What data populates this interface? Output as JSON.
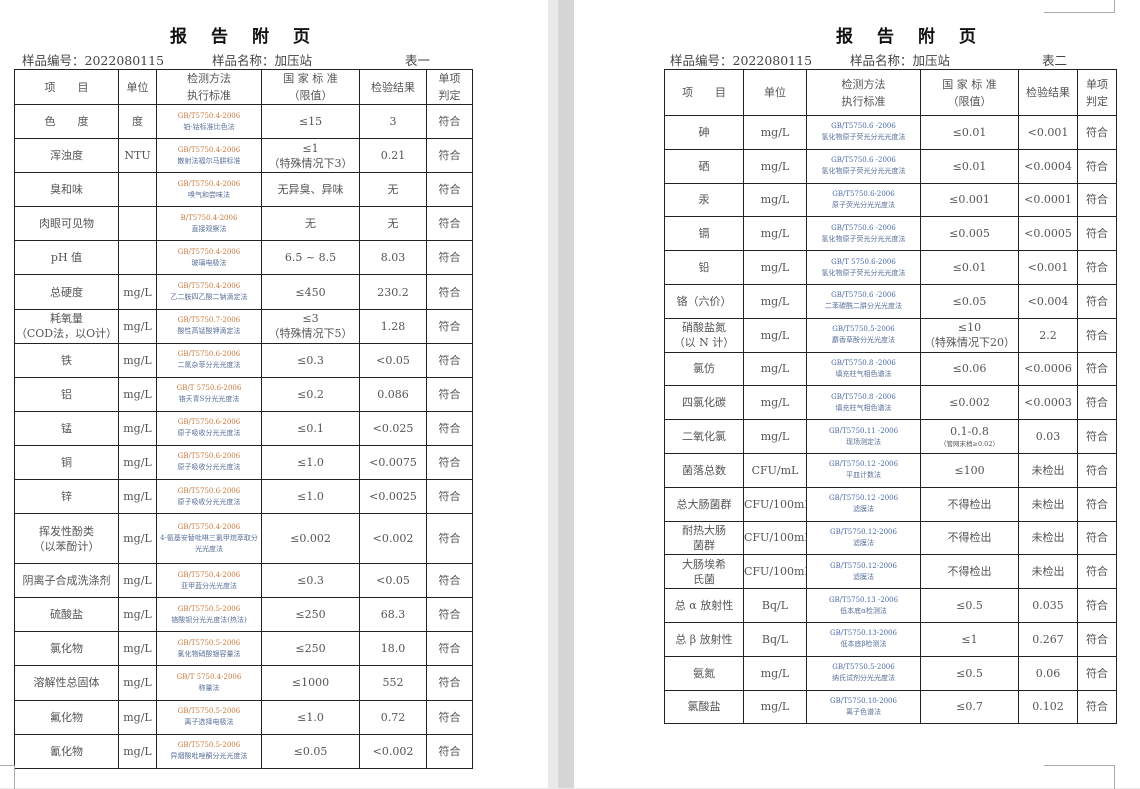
{
  "pages": [
    {
      "title": "报告附页",
      "sample_no_label": "样品编号：",
      "sample_no": "2022080115",
      "sample_name_label": "样品名称：",
      "sample_name": "加压站",
      "table_label": "表一",
      "headers": [
        "项　　目",
        "单位",
        "检测方法\n执行标准",
        "国 家 标 准\n（限值）",
        "检验结果",
        "单项\n判定"
      ],
      "rows": [
        {
          "item": "色　　度",
          "unit": "度",
          "std": "GB/T5750.4-2006",
          "method": "铂-钴标准比色法",
          "limit": "≤15",
          "result": "3",
          "verdict": "符合"
        },
        {
          "item": "浑浊度",
          "unit": "NTU",
          "std": "GB/T5750.4-2006",
          "method": "散射法福尔马肼标准",
          "limit": "≤1\n（特殊情况下3）",
          "result": "0.21",
          "verdict": "符合"
        },
        {
          "item": "臭和味",
          "unit": "",
          "std": "GB/T5750.4-2006",
          "method": "嗅气和尝味法",
          "limit": "无异臭、异味",
          "result": "无",
          "verdict": "符合"
        },
        {
          "item": "肉眼可见物",
          "unit": "",
          "std": "B/T5750.4-2006",
          "method": "直接观察法",
          "limit": "无",
          "result": "无",
          "verdict": "符合"
        },
        {
          "item": "pH 值",
          "unit": "",
          "std": "GB/T5750.4-2006",
          "method": "玻璃电极法",
          "limit": "6.5 ~ 8.5",
          "result": "8.03",
          "verdict": "符合"
        },
        {
          "item": "总硬度",
          "unit": "mg/L",
          "std": "GB/T5750.4-2006",
          "method": "乙二胺四乙酸二钠滴定法",
          "limit": "≤450",
          "result": "230.2",
          "verdict": "符合"
        },
        {
          "item": "耗氧量\n（COD法，以O计）",
          "unit": "mg/L",
          "std": "GB/T5750.7-2006",
          "method": "酸性高锰酸钾滴定法",
          "limit": "≤3\n（特殊情况下5）",
          "result": "1.28",
          "verdict": "符合"
        },
        {
          "item": "铁",
          "unit": "mg/L",
          "std": "GB/T5750.6-2006",
          "method": "二氮杂菲分光光度法",
          "limit": "≤0.3",
          "result": "<0.05",
          "verdict": "符合"
        },
        {
          "item": "铝",
          "unit": "mg/L",
          "std": "GB/T 5750.6-2006",
          "method": "铬天青S分光光度法",
          "limit": "≤0.2",
          "result": "0.086",
          "verdict": "符合"
        },
        {
          "item": "锰",
          "unit": "mg/L",
          "std": "GB/T5750.6-2006",
          "method": "原子吸收分光光度法",
          "limit": "≤0.1",
          "result": "<0.025",
          "verdict": "符合"
        },
        {
          "item": "铜",
          "unit": "mg/L",
          "std": "GB/T5750.6-2006",
          "method": "原子吸收分光光度法",
          "limit": "≤1.0",
          "result": "<0.0075",
          "verdict": "符合"
        },
        {
          "item": "锌",
          "unit": "mg/L",
          "std": "GB/T5750.6-2006",
          "method": "原子吸收分光光度法",
          "limit": "≤1.0",
          "result": "<0.0025",
          "verdict": "符合"
        },
        {
          "item": "挥发性酚类\n（以苯酚计）",
          "unit": "mg/L",
          "std": "GB/T5750.4-2006",
          "method": "4-氨基安替吡啉三氯甲烷萃取分光光度法",
          "limit": "≤0.002",
          "result": "<0.002",
          "verdict": "符合",
          "tall": true
        },
        {
          "item": "阴离子合成洗涤剂",
          "unit": "mg/L",
          "std": "GB/T5750.4-2006",
          "method": "亚甲蓝分光光度法",
          "limit": "≤0.3",
          "result": "<0.05",
          "verdict": "符合"
        },
        {
          "item": "硫酸盐",
          "unit": "mg/L",
          "std": "GB/T5750.5-2006",
          "method": "铬酸钡分光光度法(热法)",
          "limit": "≤250",
          "result": "68.3",
          "verdict": "符合"
        },
        {
          "item": "氯化物",
          "unit": "mg/L",
          "std": "GB/T5750.5-2006",
          "method": "氯化物硝酸银容量法",
          "limit": "≤250",
          "result": "18.0",
          "verdict": "符合"
        },
        {
          "item": "溶解性总固体",
          "unit": "mg/L",
          "std": "GB/T 5750.4-2006",
          "method": "称量法",
          "limit": "≤1000",
          "result": "552",
          "verdict": "符合"
        },
        {
          "item": "氟化物",
          "unit": "mg/L",
          "std": "GB/T5750.5-2006",
          "method": "离子选择电极法",
          "limit": "≤1.0",
          "result": "0.72",
          "verdict": "符合"
        },
        {
          "item": "氰化物",
          "unit": "mg/L",
          "std": "GB/T5750.5-2006",
          "method": "异烟酸吡唑酮分光光度法",
          "limit": "≤0.05",
          "result": "<0.002",
          "verdict": "符合"
        }
      ]
    },
    {
      "title": "报告附页",
      "sample_no_label": "样品编号：",
      "sample_no": "2022080115",
      "sample_name_label": "样品名称：",
      "sample_name": "加压站",
      "table_label": "表二",
      "headers": [
        "项　　目",
        "单位",
        "检测方法\n执行标准",
        "国 家 标 准\n（限值）",
        "检验结果",
        "单项\n判定"
      ],
      "rows": [
        {
          "item": "砷",
          "unit": "mg/L",
          "std": "GB/T5750.6 -2006",
          "method": "氢化物原子荧光分光光度法",
          "limit": "≤0.01",
          "result": "<0.001",
          "verdict": "符合"
        },
        {
          "item": "硒",
          "unit": "mg/L",
          "std": "GB/T5750.6 -2006",
          "method": "氢化物原子荧光分光光度法",
          "limit": "≤0.01",
          "result": "<0.0004",
          "verdict": "符合"
        },
        {
          "item": "汞",
          "unit": "mg/L",
          "std": "GB/T5750.6-2006",
          "method": "原子荧光分光光度法",
          "limit": "≤0.001",
          "result": "<0.0001",
          "verdict": "符合"
        },
        {
          "item": "镉",
          "unit": "mg/L",
          "std": "GB/T5750.6 -2006",
          "method": "氢化物原子荧光分光光度法",
          "limit": "≤0.005",
          "result": "<0.0005",
          "verdict": "符合"
        },
        {
          "item": "铅",
          "unit": "mg/L",
          "std": "GB/T 5750.6-2006",
          "method": "氢化物原子荧光分光光度法",
          "limit": "≤0.01",
          "result": "<0.001",
          "verdict": "符合"
        },
        {
          "item": "铬（六价）",
          "unit": "mg/L",
          "std": "GB/T5750.6 -2006",
          "method": "二苯碳酰二肼分光光度法",
          "limit": "≤0.05",
          "result": "<0.004",
          "verdict": "符合"
        },
        {
          "item": "硝酸盐氮\n（以 N 计）",
          "unit": "mg/L",
          "std": "GB/T5750.5-2006",
          "method": "麝香草酚分光光度法",
          "limit": "≤10\n（特殊情况下20）",
          "result": "2.2",
          "verdict": "符合"
        },
        {
          "item": "氯仿",
          "unit": "mg/L",
          "std": "GB/T5750.8 -2006",
          "method": "填充柱气相色谱法",
          "limit": "≤0.06",
          "result": "<0.0006",
          "verdict": "符合"
        },
        {
          "item": "四氯化碳",
          "unit": "mg/L",
          "std": "GB/T5750.8 -2006",
          "method": "填充柱气相色谱法",
          "limit": "≤0.002",
          "result": "<0.0003",
          "verdict": "符合"
        },
        {
          "item": "二氧化氯",
          "unit": "mg/L",
          "std": "GB/T5750.11 -2006",
          "method": "现场测定法",
          "limit": "0.1-0.8",
          "limit_note": "（管网末梢≥0.02）",
          "result": "0.03",
          "verdict": "符合"
        },
        {
          "item": "菌落总数",
          "unit": "CFU/mL",
          "std": "GB/T5750.12 -2006",
          "method": "平皿计数法",
          "limit": "≤100",
          "result": "未检出",
          "verdict": "符合"
        },
        {
          "item": "总大肠菌群",
          "unit": "CFU/100mL",
          "std": "GB/T5750.12 -2006",
          "method": "滤膜法",
          "limit": "不得检出",
          "result": "未检出",
          "verdict": "符合"
        },
        {
          "item": "耐热大肠\n菌群",
          "unit": "CFU/100mL",
          "std": "GB/T5750.12-2006",
          "method": "滤膜法",
          "limit": "不得检出",
          "result": "未检出",
          "verdict": "符合"
        },
        {
          "item": "大肠埃希\n氏菌",
          "unit": "CFU/100mL",
          "std": "GB/T5750.12-2006",
          "method": "滤膜法",
          "limit": "不得检出",
          "result": "未检出",
          "verdict": "符合"
        },
        {
          "item": "总 α 放射性",
          "unit": "Bq/L",
          "std": "GB/T5750.13 -2006",
          "method": "低本底α检测法",
          "limit": "≤0.5",
          "result": "0.035",
          "verdict": "符合"
        },
        {
          "item": "总 β 放射性",
          "unit": "Bq/L",
          "std": "GB/T5750.13-2006",
          "method": "低本底β检测法",
          "limit": "≤1",
          "result": "0.267",
          "verdict": "符合"
        },
        {
          "item": "氨氮",
          "unit": "mg/L",
          "std": "GB/T5750.5-2006",
          "method": "纳氏试剂分光光度法",
          "limit": "≤0.5",
          "result": "0.06",
          "verdict": "符合"
        },
        {
          "item": "氯酸盐",
          "unit": "mg/L",
          "std": "GB/T5750.10-2006",
          "method": "离子色谱法",
          "limit": "≤0.7",
          "result": "0.102",
          "verdict": "符合"
        }
      ]
    }
  ]
}
